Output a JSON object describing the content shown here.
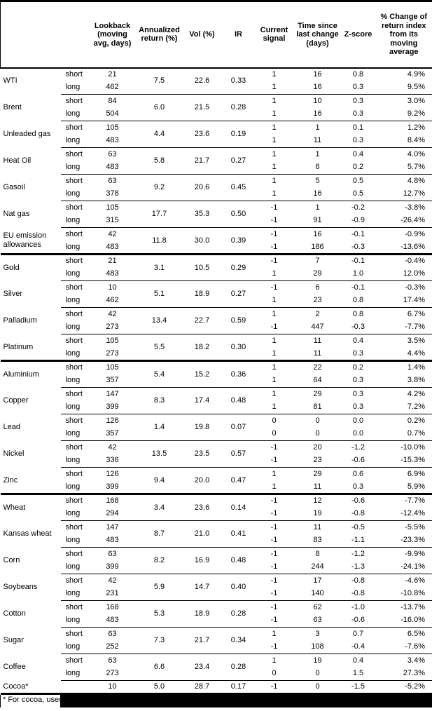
{
  "table": {
    "columns": [
      {
        "key": "name",
        "label": ""
      },
      {
        "key": "leg",
        "label": ""
      },
      {
        "key": "lookback",
        "label": "Lookback\n(moving\navg, days)"
      },
      {
        "key": "annualized_return",
        "label": "Annualized\nreturn (%)"
      },
      {
        "key": "vol",
        "label": "Vol (%)"
      },
      {
        "key": "ir",
        "label": "IR"
      },
      {
        "key": "signal",
        "label": "Current\nsignal"
      },
      {
        "key": "time_since",
        "label": "Time since\nlast change\n(days)"
      },
      {
        "key": "zscore",
        "label": "Z-score"
      },
      {
        "key": "pct_change",
        "label": "% Change of\nreturn index\nfrom its\nmoving\naverage"
      }
    ],
    "sections": [
      {
        "name": "energy",
        "commodities": [
          {
            "name": "WTI",
            "annualized_return": "7.5",
            "vol": "22.6",
            "ir": "0.33",
            "legs": [
              {
                "leg": "short",
                "lookback": "21",
                "signal": "1",
                "time_since": "16",
                "zscore": "0.8",
                "pct_change": "4.9%"
              },
              {
                "leg": "long",
                "lookback": "462",
                "signal": "1",
                "time_since": "16",
                "zscore": "0.3",
                "pct_change": "9.5%"
              }
            ]
          },
          {
            "name": "Brent",
            "annualized_return": "6.0",
            "vol": "21.5",
            "ir": "0.28",
            "legs": [
              {
                "leg": "short",
                "lookback": "84",
                "signal": "1",
                "time_since": "10",
                "zscore": "0.3",
                "pct_change": "3.0%"
              },
              {
                "leg": "long",
                "lookback": "504",
                "signal": "1",
                "time_since": "16",
                "zscore": "0.3",
                "pct_change": "9.2%"
              }
            ]
          },
          {
            "name": "Unleaded gas",
            "annualized_return": "4.4",
            "vol": "23.6",
            "ir": "0.19",
            "legs": [
              {
                "leg": "short",
                "lookback": "105",
                "signal": "1",
                "time_since": "1",
                "zscore": "0.1",
                "pct_change": "1.2%"
              },
              {
                "leg": "long",
                "lookback": "483",
                "signal": "1",
                "time_since": "11",
                "zscore": "0.3",
                "pct_change": "8.4%"
              }
            ]
          },
          {
            "name": "Heat Oil",
            "annualized_return": "5.8",
            "vol": "21.7",
            "ir": "0.27",
            "legs": [
              {
                "leg": "short",
                "lookback": "63",
                "signal": "1",
                "time_since": "1",
                "zscore": "0.4",
                "pct_change": "4.0%"
              },
              {
                "leg": "long",
                "lookback": "483",
                "signal": "1",
                "time_since": "6",
                "zscore": "0.2",
                "pct_change": "5.7%"
              }
            ]
          },
          {
            "name": "Gasoil",
            "annualized_return": "9.2",
            "vol": "20.6",
            "ir": "0.45",
            "legs": [
              {
                "leg": "short",
                "lookback": "63",
                "signal": "1",
                "time_since": "5",
                "zscore": "0.5",
                "pct_change": "4.8%"
              },
              {
                "leg": "long",
                "lookback": "378",
                "signal": "1",
                "time_since": "16",
                "zscore": "0.5",
                "pct_change": "12.7%"
              }
            ]
          },
          {
            "name": "Nat gas",
            "annualized_return": "17.7",
            "vol": "35.3",
            "ir": "0.50",
            "legs": [
              {
                "leg": "short",
                "lookback": "105",
                "signal": "-1",
                "time_since": "1",
                "zscore": "-0.2",
                "pct_change": "-3.8%"
              },
              {
                "leg": "long",
                "lookback": "315",
                "signal": "-1",
                "time_since": "91",
                "zscore": "-0.9",
                "pct_change": "-26.4%"
              }
            ]
          },
          {
            "name": "EU emission allowances",
            "annualized_return": "11.8",
            "vol": "30.0",
            "ir": "0.39",
            "legs": [
              {
                "leg": "short",
                "lookback": "42",
                "signal": "-1",
                "time_since": "16",
                "zscore": "-0.1",
                "pct_change": "-0.9%"
              },
              {
                "leg": "long",
                "lookback": "483",
                "signal": "-1",
                "time_since": "186",
                "zscore": "-0.3",
                "pct_change": "-13.6%"
              }
            ]
          }
        ]
      },
      {
        "name": "precious-metals",
        "commodities": [
          {
            "name": "Gold",
            "annualized_return": "3.1",
            "vol": "10.5",
            "ir": "0.29",
            "legs": [
              {
                "leg": "short",
                "lookback": "21",
                "signal": "-1",
                "time_since": "7",
                "zscore": "-0.1",
                "pct_change": "-0.4%"
              },
              {
                "leg": "long",
                "lookback": "483",
                "signal": "1",
                "time_since": "29",
                "zscore": "1.0",
                "pct_change": "12.0%"
              }
            ]
          },
          {
            "name": "Silver",
            "annualized_return": "5.1",
            "vol": "18.9",
            "ir": "0.27",
            "legs": [
              {
                "leg": "short",
                "lookback": "10",
                "signal": "-1",
                "time_since": "6",
                "zscore": "-0.1",
                "pct_change": "-0.3%"
              },
              {
                "leg": "long",
                "lookback": "462",
                "signal": "1",
                "time_since": "23",
                "zscore": "0.8",
                "pct_change": "17.4%"
              }
            ]
          },
          {
            "name": "Palladium",
            "annualized_return": "13.4",
            "vol": "22.7",
            "ir": "0.59",
            "legs": [
              {
                "leg": "short",
                "lookback": "42",
                "signal": "1",
                "time_since": "2",
                "zscore": "0.8",
                "pct_change": "6.7%"
              },
              {
                "leg": "long",
                "lookback": "273",
                "signal": "-1",
                "time_since": "447",
                "zscore": "-0.3",
                "pct_change": "-7.7%"
              }
            ]
          },
          {
            "name": "Platinum",
            "annualized_return": "5.5",
            "vol": "18.2",
            "ir": "0.30",
            "legs": [
              {
                "leg": "short",
                "lookback": "105",
                "signal": "1",
                "time_since": "11",
                "zscore": "0.4",
                "pct_change": "3.5%"
              },
              {
                "leg": "long",
                "lookback": "273",
                "signal": "1",
                "time_since": "11",
                "zscore": "0.3",
                "pct_change": "4.4%"
              }
            ]
          }
        ]
      },
      {
        "name": "base-metals",
        "commodities": [
          {
            "name": "Aluminium",
            "annualized_return": "5.4",
            "vol": "15.2",
            "ir": "0.36",
            "legs": [
              {
                "leg": "short",
                "lookback": "105",
                "signal": "1",
                "time_since": "22",
                "zscore": "0.2",
                "pct_change": "1.4%"
              },
              {
                "leg": "long",
                "lookback": "357",
                "signal": "1",
                "time_since": "64",
                "zscore": "0.3",
                "pct_change": "3.8%"
              }
            ]
          },
          {
            "name": "Copper",
            "annualized_return": "8.3",
            "vol": "17.4",
            "ir": "0.48",
            "legs": [
              {
                "leg": "short",
                "lookback": "147",
                "signal": "1",
                "time_since": "29",
                "zscore": "0.3",
                "pct_change": "4.2%"
              },
              {
                "leg": "long",
                "lookback": "399",
                "signal": "1",
                "time_since": "81",
                "zscore": "0.3",
                "pct_change": "7.2%"
              }
            ]
          },
          {
            "name": "Lead",
            "annualized_return": "1.4",
            "vol": "19.8",
            "ir": "0.07",
            "legs": [
              {
                "leg": "short",
                "lookback": "126",
                "signal": "0",
                "time_since": "0",
                "zscore": "0.0",
                "pct_change": "0.2%"
              },
              {
                "leg": "long",
                "lookback": "357",
                "signal": "0",
                "time_since": "0",
                "zscore": "0.0",
                "pct_change": "0.7%"
              }
            ]
          },
          {
            "name": "Nickel",
            "annualized_return": "13.5",
            "vol": "23.5",
            "ir": "0.57",
            "legs": [
              {
                "leg": "short",
                "lookback": "42",
                "signal": "-1",
                "time_since": "20",
                "zscore": "-1.2",
                "pct_change": "-10.0%"
              },
              {
                "leg": "long",
                "lookback": "336",
                "signal": "-1",
                "time_since": "23",
                "zscore": "-0.6",
                "pct_change": "-15.3%"
              }
            ]
          },
          {
            "name": "Zinc",
            "annualized_return": "9.4",
            "vol": "20.0",
            "ir": "0.47",
            "legs": [
              {
                "leg": "short",
                "lookback": "126",
                "signal": "1",
                "time_since": "29",
                "zscore": "0.6",
                "pct_change": "6.9%"
              },
              {
                "leg": "long",
                "lookback": "399",
                "signal": "1",
                "time_since": "11",
                "zscore": "0.3",
                "pct_change": "5.9%"
              }
            ]
          }
        ]
      },
      {
        "name": "agriculture",
        "commodities": [
          {
            "name": "Wheat",
            "annualized_return": "3.4",
            "vol": "23.6",
            "ir": "0.14",
            "legs": [
              {
                "leg": "short",
                "lookback": "168",
                "signal": "-1",
                "time_since": "12",
                "zscore": "-0.6",
                "pct_change": "-7.7%"
              },
              {
                "leg": "long",
                "lookback": "294",
                "signal": "-1",
                "time_since": "19",
                "zscore": "-0.8",
                "pct_change": "-12.4%"
              }
            ]
          },
          {
            "name": "Kansas wheat",
            "annualized_return": "8.7",
            "vol": "21.0",
            "ir": "0.41",
            "legs": [
              {
                "leg": "short",
                "lookback": "147",
                "signal": "-1",
                "time_since": "11",
                "zscore": "-0.5",
                "pct_change": "-5.5%"
              },
              {
                "leg": "long",
                "lookback": "483",
                "signal": "-1",
                "time_since": "83",
                "zscore": "-1.1",
                "pct_change": "-23.3%"
              }
            ]
          },
          {
            "name": "Corn",
            "annualized_return": "8.2",
            "vol": "16.9",
            "ir": "0.48",
            "legs": [
              {
                "leg": "short",
                "lookback": "63",
                "signal": "-1",
                "time_since": "8",
                "zscore": "-1.2",
                "pct_change": "-9.9%"
              },
              {
                "leg": "long",
                "lookback": "399",
                "signal": "-1",
                "time_since": "244",
                "zscore": "-1.3",
                "pct_change": "-24.1%"
              }
            ]
          },
          {
            "name": "Soybeans",
            "annualized_return": "5.9",
            "vol": "14.7",
            "ir": "0.40",
            "legs": [
              {
                "leg": "short",
                "lookback": "42",
                "signal": "-1",
                "time_since": "17",
                "zscore": "-0.8",
                "pct_change": "-4.6%"
              },
              {
                "leg": "long",
                "lookback": "231",
                "signal": "-1",
                "time_since": "140",
                "zscore": "-0.8",
                "pct_change": "-10.8%"
              }
            ]
          },
          {
            "name": "Cotton",
            "annualized_return": "5.3",
            "vol": "18.9",
            "ir": "0.28",
            "legs": [
              {
                "leg": "short",
                "lookback": "168",
                "signal": "-1",
                "time_since": "62",
                "zscore": "-1.0",
                "pct_change": "-13.7%"
              },
              {
                "leg": "long",
                "lookback": "483",
                "signal": "-1",
                "time_since": "63",
                "zscore": "-0.6",
                "pct_change": "-16.0%"
              }
            ]
          },
          {
            "name": "Sugar",
            "annualized_return": "7.3",
            "vol": "21.7",
            "ir": "0.34",
            "legs": [
              {
                "leg": "short",
                "lookback": "63",
                "signal": "1",
                "time_since": "3",
                "zscore": "0.7",
                "pct_change": "6.5%"
              },
              {
                "leg": "long",
                "lookback": "252",
                "signal": "-1",
                "time_since": "108",
                "zscore": "-0.4",
                "pct_change": "-7.6%"
              }
            ]
          },
          {
            "name": "Coffee",
            "annualized_return": "6.6",
            "vol": "23.4",
            "ir": "0.28",
            "legs": [
              {
                "leg": "short",
                "lookback": "63",
                "signal": "1",
                "time_since": "19",
                "zscore": "0.4",
                "pct_change": "3.4%"
              },
              {
                "leg": "long",
                "lookback": "273",
                "signal": "0",
                "time_since": "0",
                "zscore": "1.5",
                "pct_change": "27.3%"
              }
            ]
          },
          {
            "name": "Cocoa*",
            "annualized_return": "5.0",
            "vol": "28.7",
            "ir": "0.17",
            "legs": [
              {
                "leg": "",
                "lookback": "10",
                "signal": "-1",
                "time_since": "0",
                "zscore": "-1.5",
                "pct_change": "-5.2%"
              }
            ]
          }
        ]
      }
    ]
  },
  "footnote": {
    "text": "* For cocoa, uses",
    "redacted": true
  }
}
